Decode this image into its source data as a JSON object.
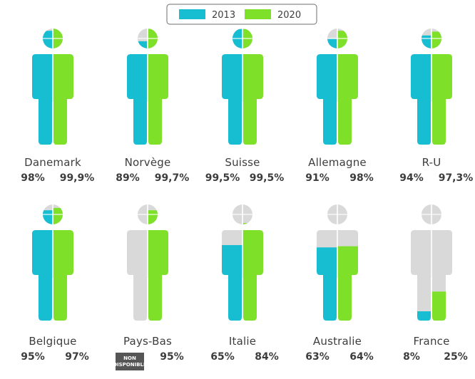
{
  "colors": {
    "y2013": "#17bdd0",
    "y2020": "#7fe02a",
    "empty": "#d9d9d9",
    "text": "#3d3d3d",
    "na_badge": "#555555"
  },
  "legend": {
    "label_2013": "2013",
    "label_2020": "2020"
  },
  "chart_data": {
    "type": "pictogram",
    "series": [
      {
        "name": "2013"
      },
      {
        "name": "2020"
      }
    ],
    "countries": [
      {
        "name": "Danemark",
        "v2013": 98,
        "v2020": 99.9,
        "label2013": "98%",
        "label2020": "99,9%"
      },
      {
        "name": "Norvège",
        "v2013": 89,
        "v2020": 99.7,
        "label2013": "89%",
        "label2020": "99,7%"
      },
      {
        "name": "Suisse",
        "v2013": 99.5,
        "v2020": 99.5,
        "label2013": "99,5%",
        "label2020": "99,5%"
      },
      {
        "name": "Allemagne",
        "v2013": 91,
        "v2020": 98,
        "label2013": "91%",
        "label2020": "98%"
      },
      {
        "name": "R-U",
        "v2013": 94,
        "v2020": 97.3,
        "label2013": "94%",
        "label2020": "97,3%"
      },
      {
        "name": "Belgique",
        "v2013": 95,
        "v2020": 97,
        "label2013": "95%",
        "label2020": "97%"
      },
      {
        "name": "Pays-Bas",
        "v2013": null,
        "v2020": 95,
        "label2013": "NON DISPONIBLE",
        "label2020": "95%"
      },
      {
        "name": "Italie",
        "v2013": 65,
        "v2020": 84,
        "label2013": "65%",
        "label2020": "84%"
      },
      {
        "name": "Australie",
        "v2013": 63,
        "v2020": 64,
        "label2013": "63%",
        "label2020": "64%"
      },
      {
        "name": "France",
        "v2013": 8,
        "v2020": 25,
        "label2013": "8%",
        "label2020": "25%"
      }
    ]
  }
}
